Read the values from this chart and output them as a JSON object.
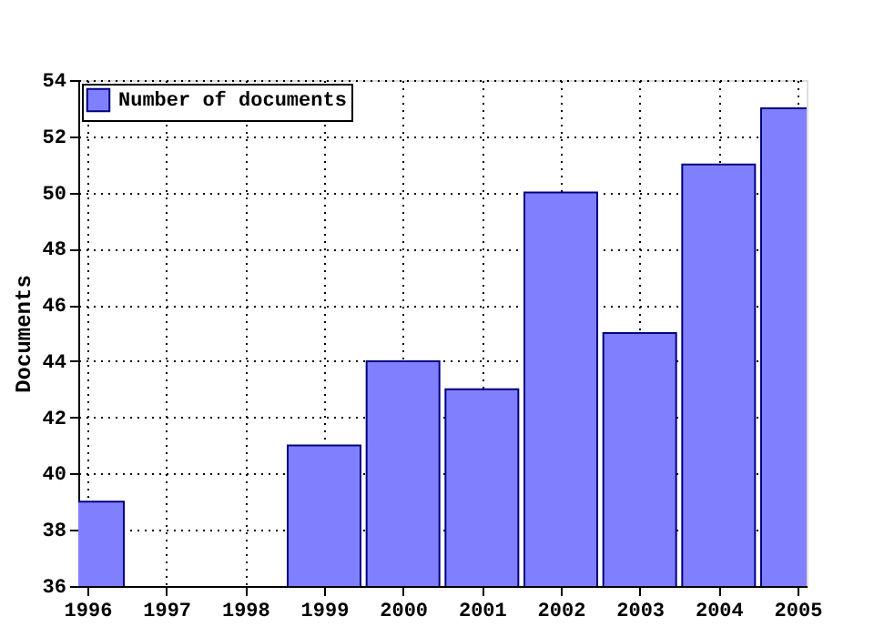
{
  "chart_data": {
    "type": "bar",
    "ylabel": "Documents",
    "x": [
      1996,
      1997,
      1998,
      1999,
      2000,
      2001,
      2002,
      2003,
      2004,
      2005
    ],
    "series": [
      {
        "name": "Number of documents",
        "color": "#8080ff",
        "values": [
          39,
          null,
          null,
          41,
          44,
          43,
          50,
          45,
          51,
          53
        ]
      }
    ],
    "xlim": [
      1996,
      2005
    ],
    "xticks": [
      1996,
      1997,
      1998,
      1999,
      2000,
      2001,
      2002,
      2003,
      2004,
      2005
    ],
    "ylim": [
      36,
      54
    ],
    "yticks": [
      36,
      38,
      40,
      42,
      44,
      46,
      48,
      50,
      52,
      54
    ],
    "grid": true,
    "legend": "top left"
  }
}
